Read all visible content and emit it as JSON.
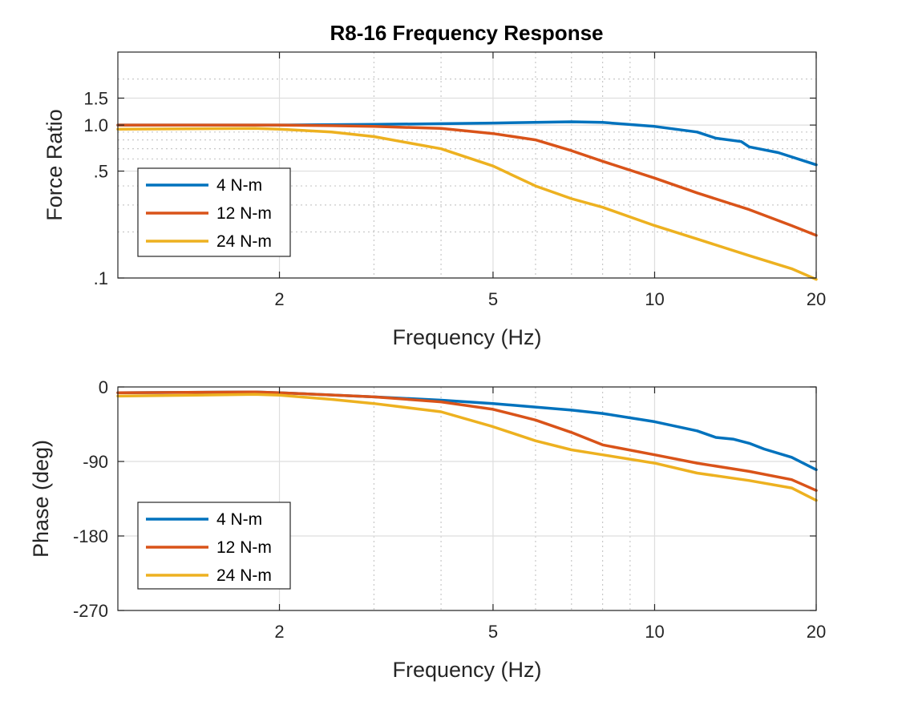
{
  "chart_data": [
    {
      "type": "line",
      "title": "R8-16 Frequency Response",
      "xlabel": "Frequency (Hz)",
      "ylabel": "Force Ratio",
      "xscale": "log",
      "yscale": "log",
      "xlim": [
        1,
        20
      ],
      "ylim": [
        0.1,
        3.0
      ],
      "xticks": [
        2,
        5,
        10,
        20
      ],
      "xtick_labels": [
        "2",
        "5",
        "10",
        "20"
      ],
      "yticks": [
        0.1,
        0.5,
        1.0,
        1.5
      ],
      "ytick_labels": [
        ".1",
        ".5",
        "1.0",
        "1.5"
      ],
      "grid": true,
      "legend_position": "bottom-left",
      "series": [
        {
          "name": "4 N-m",
          "color": "#0072BD",
          "x": [
            1,
            2,
            3,
            5,
            7,
            8,
            10,
            12,
            13,
            14.5,
            15,
            17,
            20
          ],
          "y": [
            1.0,
            1.0,
            1.01,
            1.03,
            1.05,
            1.04,
            0.98,
            0.9,
            0.82,
            0.78,
            0.72,
            0.66,
            0.55
          ]
        },
        {
          "name": "12 N-m",
          "color": "#D95319",
          "x": [
            1,
            2,
            2.5,
            3,
            4,
            5,
            6,
            7,
            8,
            10,
            12,
            15,
            18,
            20
          ],
          "y": [
            1.0,
            1.0,
            0.99,
            0.98,
            0.95,
            0.88,
            0.8,
            0.68,
            0.58,
            0.45,
            0.36,
            0.28,
            0.22,
            0.19
          ]
        },
        {
          "name": "24 N-m",
          "color": "#EDB120",
          "x": [
            1,
            1.8,
            2,
            2.5,
            3,
            4,
            5,
            6,
            7,
            8,
            10,
            12,
            15,
            18,
            20
          ],
          "y": [
            0.94,
            0.95,
            0.94,
            0.9,
            0.84,
            0.7,
            0.54,
            0.4,
            0.33,
            0.29,
            0.22,
            0.18,
            0.14,
            0.115,
            0.098
          ]
        }
      ]
    },
    {
      "type": "line",
      "title": "",
      "xlabel": "Frequency (Hz)",
      "ylabel": "Phase (deg)",
      "xscale": "log",
      "yscale": "linear",
      "xlim": [
        1,
        20
      ],
      "ylim": [
        -270,
        0
      ],
      "xticks": [
        2,
        5,
        10,
        20
      ],
      "xtick_labels": [
        "2",
        "5",
        "10",
        "20"
      ],
      "yticks": [
        0,
        -90,
        -180,
        -270
      ],
      "ytick_labels": [
        "0",
        "-90",
        "-180",
        "-270"
      ],
      "grid": true,
      "legend_position": "bottom-left",
      "series": [
        {
          "name": "4 N-m",
          "color": "#0072BD",
          "x": [
            1,
            1.8,
            2,
            3,
            4,
            5,
            7,
            8,
            10,
            12,
            13,
            14,
            15,
            16,
            18,
            20
          ],
          "y": [
            -7,
            -6,
            -7,
            -12,
            -16,
            -20,
            -28,
            -32,
            -42,
            -53,
            -61,
            -63,
            -68,
            -75,
            -85,
            -100
          ]
        },
        {
          "name": "12 N-m",
          "color": "#D95319",
          "x": [
            1,
            1.8,
            2,
            3,
            4,
            5,
            6,
            7,
            8,
            10,
            12,
            15,
            18,
            20
          ],
          "y": [
            -7,
            -6,
            -7,
            -12,
            -18,
            -27,
            -40,
            -55,
            -70,
            -82,
            -92,
            -102,
            -112,
            -125
          ]
        },
        {
          "name": "24 N-m",
          "color": "#EDB120",
          "x": [
            1,
            1.8,
            2,
            2.5,
            3,
            4,
            5,
            6,
            7,
            8,
            10,
            12,
            15,
            18,
            20
          ],
          "y": [
            -11,
            -9,
            -10,
            -15,
            -20,
            -30,
            -48,
            -65,
            -76,
            -82,
            -92,
            -104,
            -113,
            -122,
            -137
          ]
        }
      ]
    }
  ]
}
